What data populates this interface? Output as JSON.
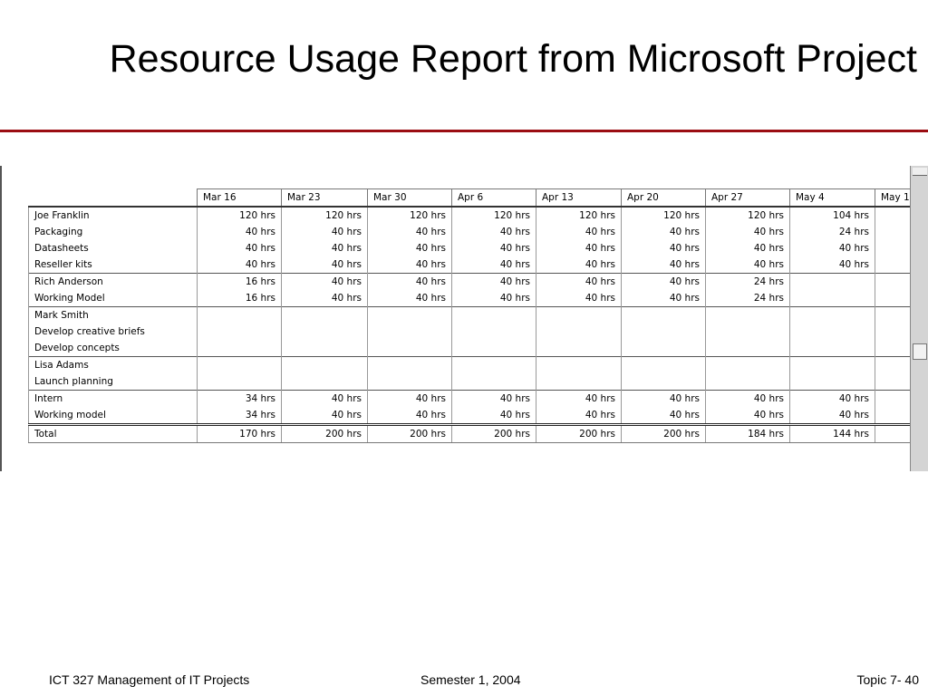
{
  "slide": {
    "title": "Resource Usage Report from Microsoft Project"
  },
  "report": {
    "columns": [
      "Mar 16",
      "Mar 23",
      "Mar 30",
      "Apr 6",
      "Apr 13",
      "Apr 20",
      "Apr 27",
      "May 4",
      "May 1"
    ],
    "rows": [
      {
        "name": "Joe Franklin",
        "indent": false,
        "group_start": true,
        "values": [
          "120 hrs",
          "120 hrs",
          "120 hrs",
          "120 hrs",
          "120 hrs",
          "120 hrs",
          "120 hrs",
          "104 hrs",
          ""
        ]
      },
      {
        "name": "Packaging",
        "indent": true,
        "group_start": false,
        "values": [
          "40 hrs",
          "40 hrs",
          "40 hrs",
          "40 hrs",
          "40 hrs",
          "40 hrs",
          "40 hrs",
          "24 hrs",
          ""
        ]
      },
      {
        "name": "Datasheets",
        "indent": true,
        "group_start": false,
        "values": [
          "40 hrs",
          "40 hrs",
          "40 hrs",
          "40 hrs",
          "40 hrs",
          "40 hrs",
          "40 hrs",
          "40 hrs",
          ""
        ]
      },
      {
        "name": "Reseller kits",
        "indent": true,
        "group_start": false,
        "values": [
          "40 hrs",
          "40 hrs",
          "40 hrs",
          "40 hrs",
          "40 hrs",
          "40 hrs",
          "40 hrs",
          "40 hrs",
          ""
        ]
      },
      {
        "name": "Rich Anderson",
        "indent": false,
        "group_start": true,
        "values": [
          "16 hrs",
          "40 hrs",
          "40 hrs",
          "40 hrs",
          "40 hrs",
          "40 hrs",
          "24 hrs",
          "",
          ""
        ]
      },
      {
        "name": "Working Model",
        "indent": true,
        "group_start": false,
        "values": [
          "16 hrs",
          "40 hrs",
          "40 hrs",
          "40 hrs",
          "40 hrs",
          "40 hrs",
          "24 hrs",
          "",
          ""
        ]
      },
      {
        "name": "Mark Smith",
        "indent": false,
        "group_start": true,
        "values": [
          "",
          "",
          "",
          "",
          "",
          "",
          "",
          "",
          ""
        ]
      },
      {
        "name": "Develop creative briefs",
        "indent": true,
        "group_start": false,
        "values": [
          "",
          "",
          "",
          "",
          "",
          "",
          "",
          "",
          ""
        ]
      },
      {
        "name": "Develop concepts",
        "indent": true,
        "group_start": false,
        "values": [
          "",
          "",
          "",
          "",
          "",
          "",
          "",
          "",
          ""
        ]
      },
      {
        "name": "Lisa Adams",
        "indent": false,
        "group_start": true,
        "values": [
          "",
          "",
          "",
          "",
          "",
          "",
          "",
          "",
          ""
        ]
      },
      {
        "name": "Launch planning",
        "indent": true,
        "group_start": false,
        "values": [
          "",
          "",
          "",
          "",
          "",
          "",
          "",
          "",
          ""
        ]
      },
      {
        "name": "Intern",
        "indent": false,
        "group_start": true,
        "values": [
          "34 hrs",
          "40 hrs",
          "40 hrs",
          "40 hrs",
          "40 hrs",
          "40 hrs",
          "40 hrs",
          "40 hrs",
          ""
        ]
      },
      {
        "name": "Working model",
        "indent": true,
        "group_start": false,
        "values": [
          "34 hrs",
          "40 hrs",
          "40 hrs",
          "40 hrs",
          "40 hrs",
          "40 hrs",
          "40 hrs",
          "40 hrs",
          ""
        ]
      }
    ],
    "total": {
      "name": "Total",
      "values": [
        "170 hrs",
        "200 hrs",
        "200 hrs",
        "200 hrs",
        "200 hrs",
        "200 hrs",
        "184 hrs",
        "144 hrs",
        ""
      ]
    }
  },
  "footer": {
    "course": "ICT 327 Management of IT Projects",
    "semester": "Semester 1, 2004",
    "topic": "Topic 7- 40"
  },
  "colors": {
    "title_rule": "#9b0d12"
  }
}
